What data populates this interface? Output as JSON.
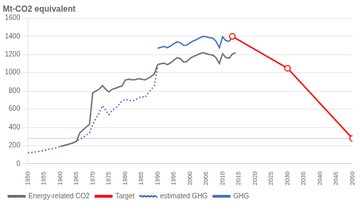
{
  "chart_data": {
    "type": "line",
    "title": "Mt-CO2 equivalent",
    "xlim": [
      1950,
      2050
    ],
    "xticks": [
      1950,
      1955,
      1960,
      1965,
      1970,
      1975,
      1980,
      1985,
      1990,
      1995,
      2000,
      2005,
      2010,
      2015,
      2020,
      2025,
      2030,
      2035,
      2040,
      2045,
      2050
    ],
    "ylim": [
      0,
      1600
    ],
    "yticks": [
      0,
      200,
      400,
      600,
      800,
      1000,
      1200,
      1400,
      1600
    ],
    "grid": "y",
    "legend": "bottom",
    "series": [
      {
        "name": "GHG",
        "color": "#4472C4",
        "line_style": "solid",
        "x": [
          1990,
          1991,
          1992,
          1993,
          1994,
          1995,
          1996,
          1997,
          1998,
          1999,
          2000,
          2001,
          2002,
          2003,
          2004,
          2005,
          2006,
          2007,
          2008,
          2009,
          2010,
          2011,
          2012,
          2013,
          2014
        ],
        "values": [
          1270,
          1280,
          1290,
          1275,
          1295,
          1320,
          1340,
          1330,
          1300,
          1305,
          1330,
          1350,
          1365,
          1385,
          1400,
          1395,
          1385,
          1380,
          1345,
          1275,
          1395,
          1355,
          1345,
          1395,
          1385
        ]
      },
      {
        "name": "estimated GHG",
        "color": "#4472C4",
        "line_style": "dotted",
        "x": [
          1950,
          1951,
          1952,
          1953,
          1954,
          1955,
          1956,
          1957,
          1958,
          1959,
          1960,
          1961,
          1962,
          1963,
          1964,
          1965,
          1966,
          1967,
          1968,
          1969,
          1970,
          1971,
          1972,
          1973,
          1974,
          1975,
          1976,
          1977,
          1978,
          1979,
          1980,
          1981,
          1982,
          1983,
          1984,
          1985,
          1986,
          1987,
          1988,
          1989,
          1990
        ],
        "values": [
          120,
          125,
          130,
          135,
          140,
          148,
          158,
          165,
          172,
          180,
          192,
          200,
          212,
          222,
          235,
          250,
          270,
          290,
          315,
          340,
          430,
          500,
          560,
          640,
          590,
          540,
          590,
          610,
          650,
          690,
          710,
          700,
          690,
          700,
          720,
          740,
          730,
          775,
          815,
          860,
          1060
        ]
      },
      {
        "name": "Target",
        "color": "#FF0000",
        "line_style": "solid",
        "marker": "circle",
        "x": [
          2013,
          2030,
          2050
        ],
        "values": [
          1400,
          1050,
          280
        ]
      },
      {
        "name": "Energy-related CO2",
        "color": "#707070",
        "line_style": "solid",
        "x": [
          1960,
          1961,
          1962,
          1963,
          1964,
          1965,
          1966,
          1967,
          1968,
          1969,
          1970,
          1971,
          1972,
          1973,
          1974,
          1975,
          1976,
          1977,
          1978,
          1979,
          1980,
          1981,
          1982,
          1983,
          1984,
          1985,
          1986,
          1987,
          1988,
          1989,
          1990,
          1991,
          1992,
          1993,
          1994,
          1995,
          1996,
          1997,
          1998,
          1999,
          2000,
          2001,
          2002,
          2003,
          2004,
          2005,
          2006,
          2007,
          2008,
          2009,
          2010,
          2011,
          2012,
          2013,
          2014
        ],
        "values": [
          192,
          200,
          210,
          220,
          232,
          248,
          340,
          375,
          405,
          435,
          780,
          800,
          820,
          860,
          820,
          790,
          820,
          830,
          845,
          855,
          920,
          930,
          925,
          925,
          935,
          930,
          922,
          938,
          960,
          990,
          1090,
          1100,
          1105,
          1090,
          1110,
          1140,
          1165,
          1155,
          1118,
          1125,
          1160,
          1178,
          1195,
          1210,
          1220,
          1210,
          1200,
          1195,
          1165,
          1102,
          1210,
          1168,
          1160,
          1205,
          1220
        ]
      }
    ],
    "hlines": [
      {
        "value": 280,
        "color": "#C8C8C8"
      }
    ]
  }
}
